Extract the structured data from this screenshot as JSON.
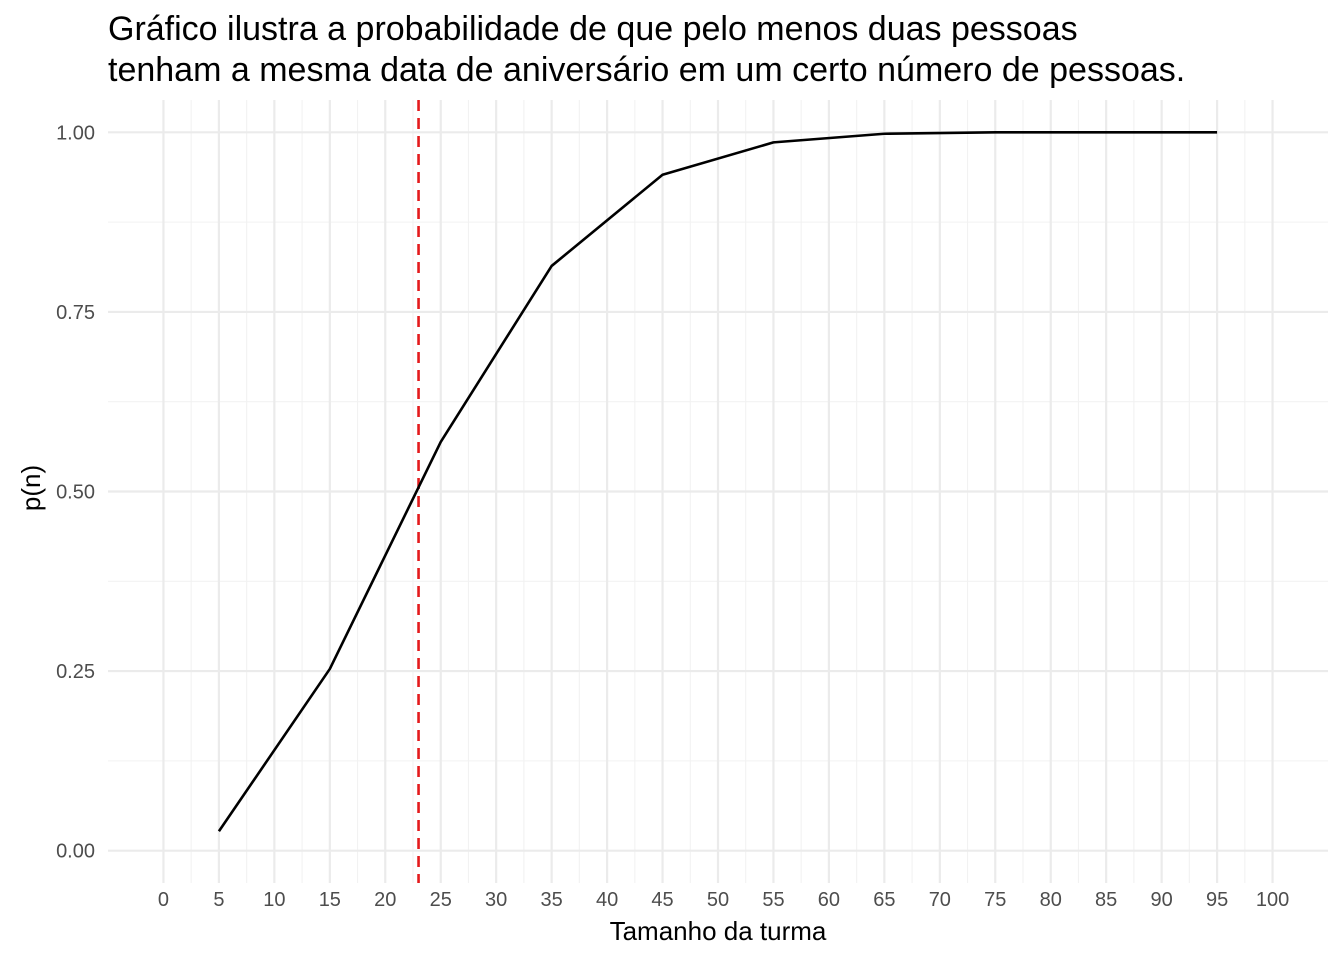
{
  "chart_data": {
    "type": "line",
    "title": [
      "Gráfico ilustra a probabilidade de que pelo menos duas pessoas",
      "tenham a mesma data de aniversário em um certo número de pessoas."
    ],
    "xlabel": "Tamanho da turma",
    "ylabel": "p(n)",
    "xlim": [
      -5,
      105
    ],
    "ylim": [
      -0.045,
      1.045
    ],
    "x_ticks": [
      0,
      5,
      10,
      15,
      20,
      25,
      30,
      35,
      40,
      45,
      50,
      55,
      60,
      65,
      70,
      75,
      80,
      85,
      90,
      95,
      100
    ],
    "y_ticks": [
      0.0,
      0.25,
      0.5,
      0.75,
      1.0
    ],
    "y_tick_labels": [
      "0.00",
      "0.25",
      "0.50",
      "0.75",
      "1.00"
    ],
    "grid": true,
    "series": [
      {
        "x": [
          5,
          15,
          25,
          35,
          45,
          55,
          65,
          75,
          85,
          95
        ],
        "y": [
          0.027,
          0.253,
          0.569,
          0.814,
          0.941,
          0.986,
          0.998,
          1.0,
          1.0,
          1.0
        ],
        "color": "#000000"
      }
    ],
    "vline": {
      "x": 23,
      "color": "#e41a1c",
      "style": "dashed"
    }
  }
}
